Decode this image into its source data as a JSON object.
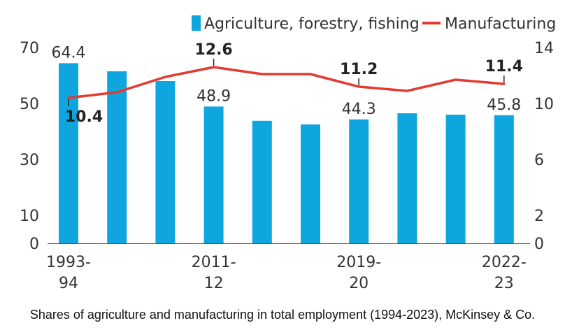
{
  "chart_data": {
    "type": "bar",
    "categories": [
      "1993-94",
      "",
      "",
      "2011-12",
      "",
      "",
      "2019-20",
      "",
      "",
      "2022-23"
    ],
    "x_tick_labels": [
      {
        "index": 0,
        "lines": [
          "1993-",
          "94"
        ]
      },
      {
        "index": 3,
        "lines": [
          "2011-",
          "12"
        ]
      },
      {
        "index": 6,
        "lines": [
          "2019-",
          "20"
        ]
      },
      {
        "index": 9,
        "lines": [
          "2022-",
          "23"
        ]
      }
    ],
    "series": [
      {
        "name": "Agriculture, forestry, fishing",
        "type": "bar",
        "axis": "left",
        "color": "#0fa5df",
        "values": [
          64.4,
          61.5,
          58.0,
          48.9,
          43.8,
          42.5,
          44.3,
          46.5,
          46.0,
          45.8
        ]
      },
      {
        "name": "Manufacturing",
        "type": "line",
        "axis": "right",
        "color": "#e33b2f",
        "values": [
          10.4,
          10.8,
          11.9,
          12.6,
          12.1,
          12.1,
          11.2,
          10.9,
          11.7,
          11.4
        ]
      }
    ],
    "y_left": {
      "ticks": [
        "0",
        "10",
        "30",
        "50",
        "70"
      ],
      "tick_values": [
        0,
        10,
        30,
        50,
        70
      ],
      "range": [
        0,
        70
      ]
    },
    "y_right": {
      "ticks": [
        "0",
        "2",
        "6",
        "10",
        "14"
      ],
      "tick_values": [
        0,
        2,
        6,
        10,
        14
      ],
      "range": [
        0,
        14
      ]
    },
    "bar_labels": [
      {
        "index": 0,
        "text": "64.4"
      },
      {
        "index": 3,
        "text": "48.9"
      },
      {
        "index": 6,
        "text": "44.3"
      },
      {
        "index": 9,
        "text": "45.8"
      }
    ],
    "line_labels": [
      {
        "index": 0,
        "text": "10.4",
        "position": "below"
      },
      {
        "index": 3,
        "text": "12.6",
        "position": "above"
      },
      {
        "index": 6,
        "text": "11.2",
        "position": "above"
      },
      {
        "index": 9,
        "text": "11.4",
        "position": "above"
      }
    ],
    "legend_position": "top-right",
    "grid": false
  },
  "caption": "Shares of agriculture and manufacturing in total employment (1994-2023), McKinsey & Co."
}
